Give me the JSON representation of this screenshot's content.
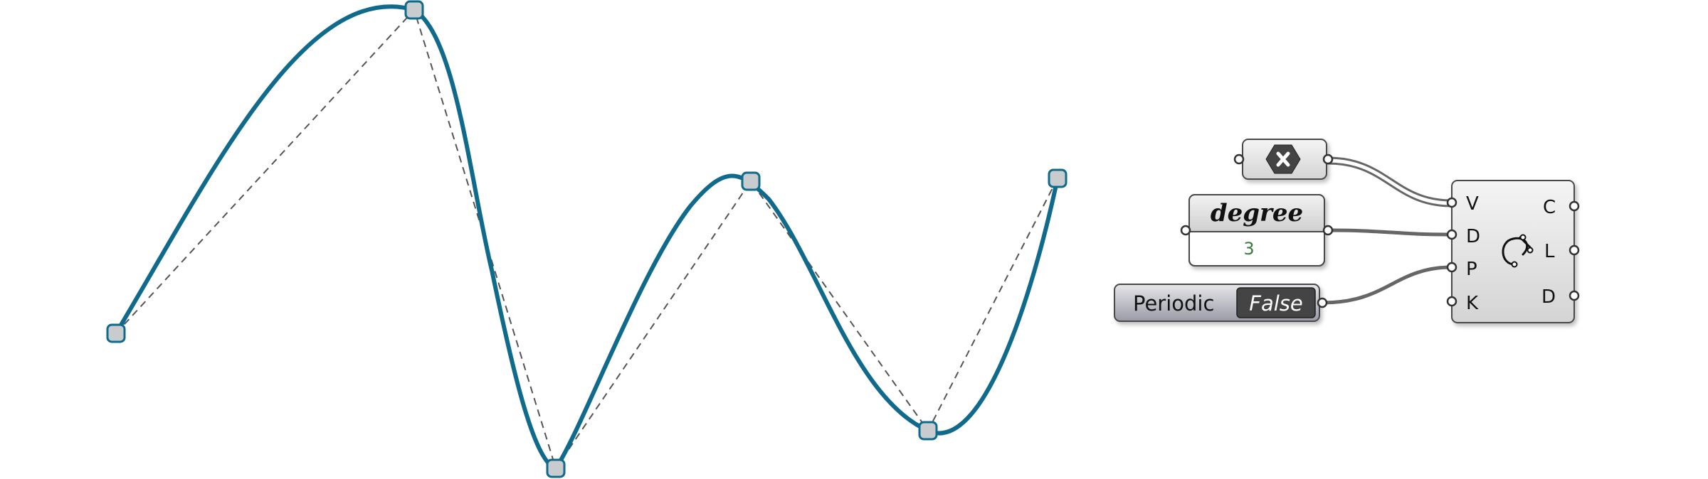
{
  "colors": {
    "curve": "#0f6a8c",
    "control_polygon": "#555555",
    "node_fill": "#c9ccce",
    "node_stroke": "#0f6a8c",
    "component_fill": "#e4e4e4",
    "wire": "#666666",
    "toggle_dark": "#444444"
  },
  "curve": {
    "degree": 3,
    "periodic": false,
    "control_points_count": 6
  },
  "components": {
    "point_param": {
      "icon": "close-hexagon-icon"
    },
    "degree_slider": {
      "title": "degree",
      "value": "3"
    },
    "periodic_toggle": {
      "label": "Periodic",
      "value": "False"
    },
    "nurbs_curve": {
      "icon": "nurbs-curve-icon",
      "inputs": [
        "V",
        "D",
        "P",
        "K"
      ],
      "outputs": [
        "C",
        "L",
        "D"
      ]
    }
  }
}
